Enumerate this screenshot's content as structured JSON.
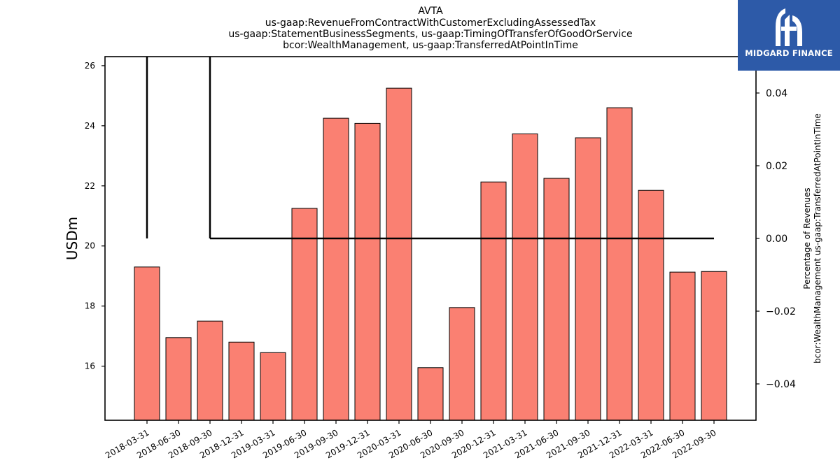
{
  "brand": {
    "name": "MIDGARD FINANCE",
    "bg_color": "#2d5aa8"
  },
  "chart_data": {
    "type": "bar",
    "title_lines": [
      "AVTA",
      "us-gaap:RevenueFromContractWithCustomerExcludingAssessedTax",
      "us-gaap:StatementBusinessSegments, us-gaap:TimingOfTransferOfGoodOrService",
      "bcor:WealthManagement, us-gaap:TransferredAtPointInTime"
    ],
    "categories": [
      "2018-03-31",
      "2018-06-30",
      "2018-09-30",
      "2018-12-31",
      "2019-03-31",
      "2019-06-30",
      "2019-09-30",
      "2019-12-31",
      "2020-03-31",
      "2020-06-30",
      "2020-09-30",
      "2020-12-31",
      "2021-03-31",
      "2021-06-30",
      "2021-09-30",
      "2021-12-31",
      "2022-03-31",
      "2022-06-30",
      "2022-09-30"
    ],
    "values": [
      19.3,
      16.95,
      17.5,
      16.8,
      16.45,
      21.25,
      24.25,
      24.08,
      25.25,
      15.95,
      17.95,
      22.13,
      23.73,
      22.25,
      23.6,
      24.6,
      21.85,
      19.13,
      19.15
    ],
    "bar_color": "#fa8072",
    "ylabel": "USDm",
    "ylim": [
      14.2,
      26.3
    ],
    "yticks": [
      16,
      18,
      20,
      22,
      24,
      26
    ],
    "y2label_lines": [
      "Percentage of Revenues",
      "bcor:WealthManagement us-gaap:TransferredAtPointInTime"
    ],
    "y2lim": [
      -0.05,
      0.05
    ],
    "y2ticks": [
      -0.04,
      -0.02,
      0.0,
      0.02,
      0.04
    ],
    "y2tick_labels": [
      "−0.04",
      "−0.02",
      "0.00",
      "0.02",
      "0.04"
    ],
    "line_series": {
      "x": [
        "2018-03-31",
        "2018-09-30",
        "2018-12-31",
        "2019-03-31",
        "2019-06-30",
        "2019-09-30",
        "2019-12-31",
        "2020-03-31",
        "2020-06-30",
        "2020-09-30",
        "2020-12-31",
        "2021-03-31",
        "2021-06-30",
        "2021-09-30",
        "2021-12-31",
        "2022-03-31",
        "2022-06-30",
        "2022-09-30"
      ],
      "values": [
        0,
        0,
        0,
        0,
        0,
        0,
        0,
        0,
        0,
        0,
        0,
        0,
        0,
        0,
        0,
        0,
        0,
        0
      ]
    },
    "grid": false
  }
}
